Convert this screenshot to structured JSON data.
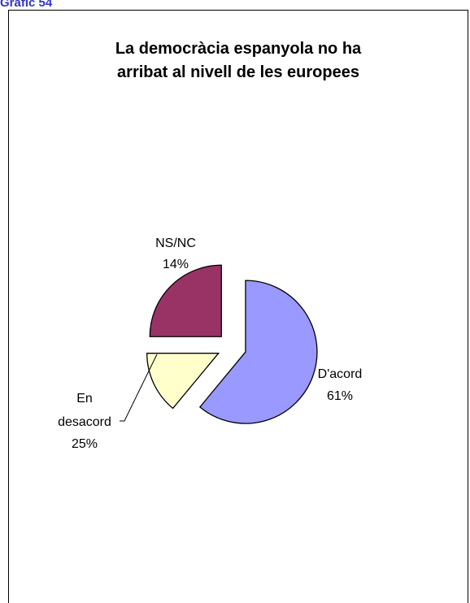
{
  "header": {
    "label": "Gràfic 54"
  },
  "chart_data": {
    "type": "pie",
    "title_lines": [
      "La democràcia espanyola no ha",
      "arribat al nivell de les europees"
    ],
    "slices": [
      {
        "label_lines": [
          "D'acord"
        ],
        "value": 61,
        "value_text": "61%",
        "color": "#9999ff"
      },
      {
        "label_lines": [
          "NS/NC"
        ],
        "value": 14,
        "value_text": "14%",
        "color": "#ffffcc"
      },
      {
        "label_lines": [
          "En",
          "desacord"
        ],
        "value": 25,
        "value_text": "25%",
        "color": "#993366"
      }
    ],
    "exploded": true,
    "legend": "none"
  }
}
